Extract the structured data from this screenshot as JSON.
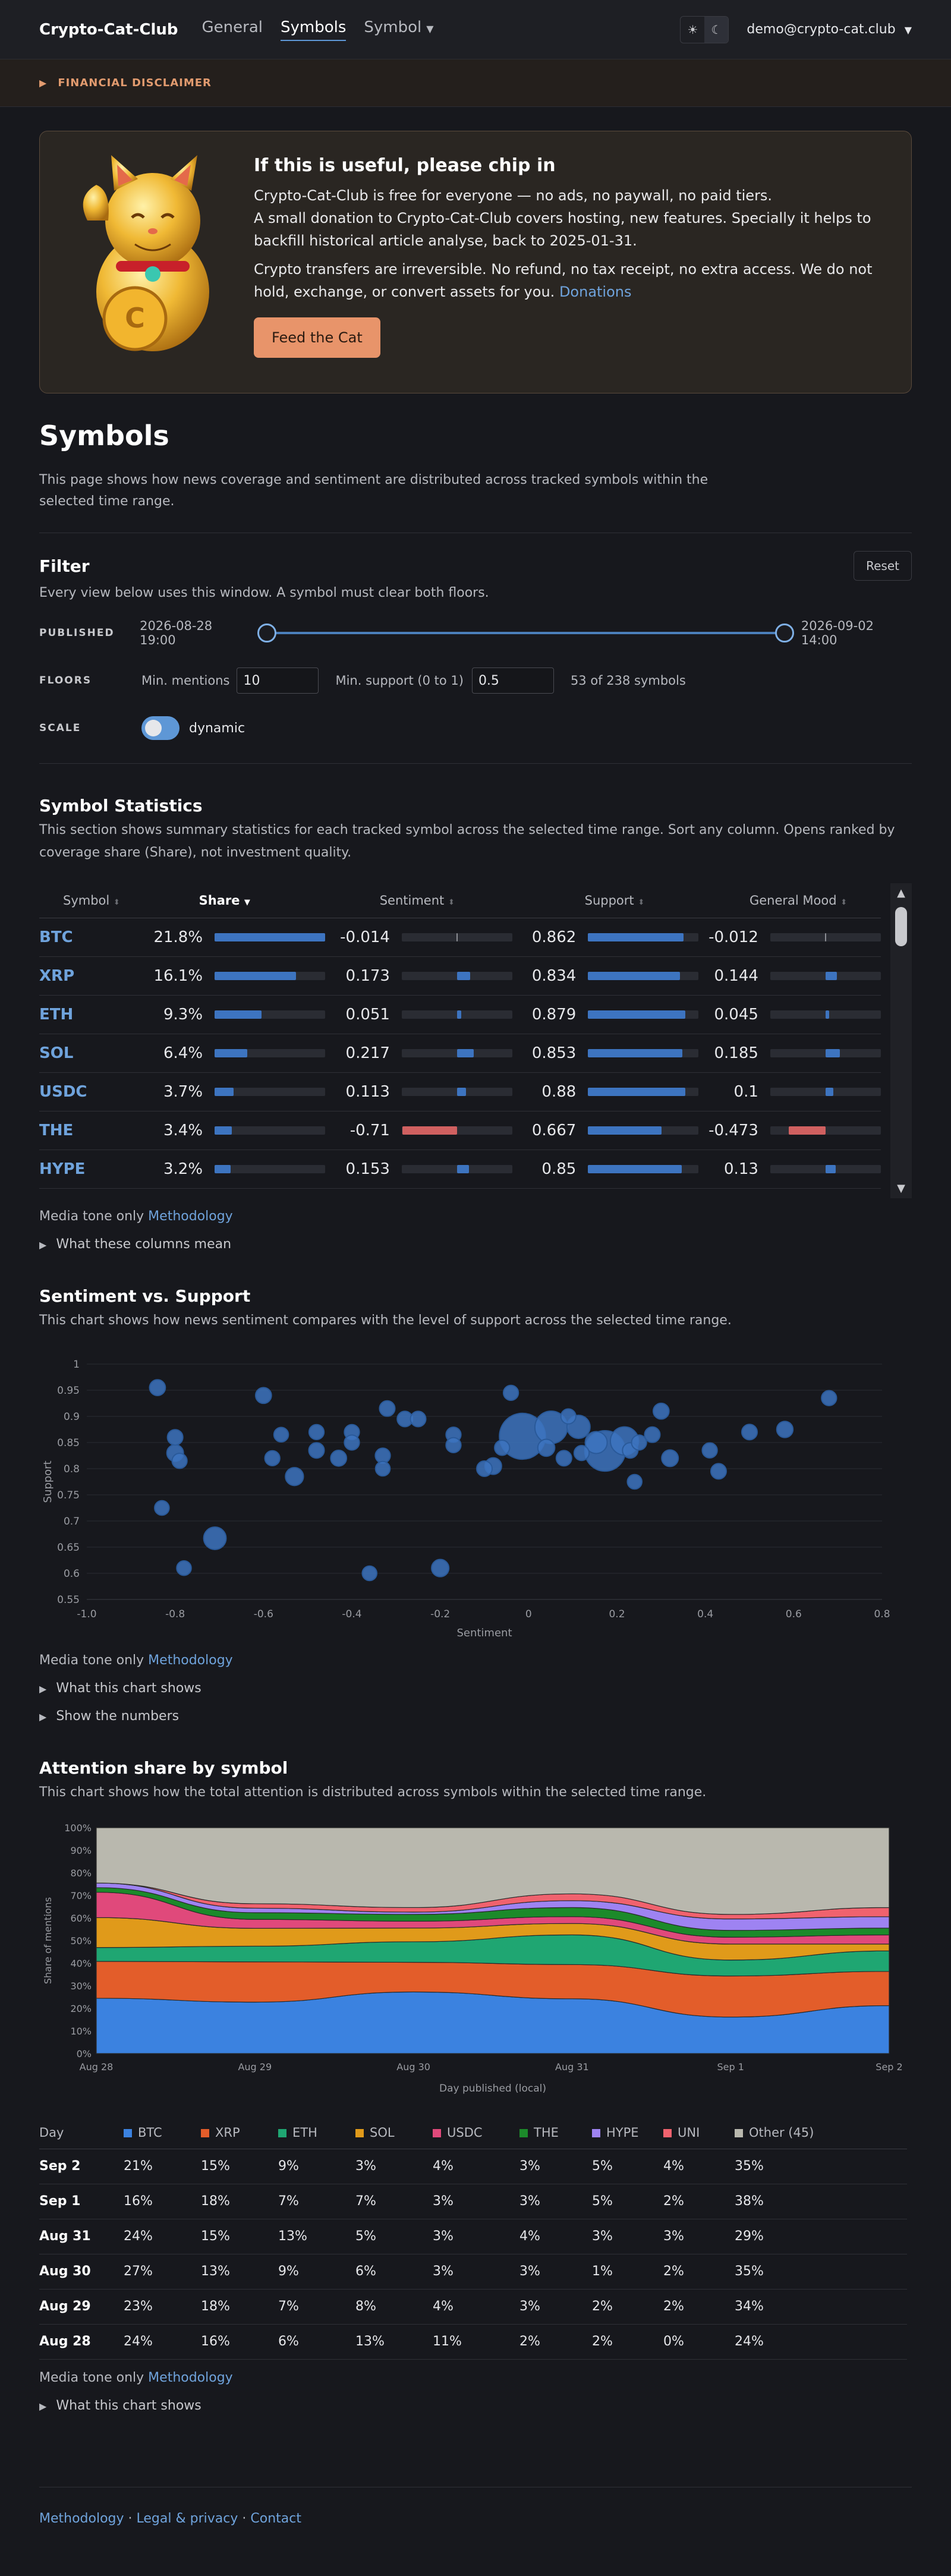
{
  "nav": {
    "brand": "Crypto-Cat-Club",
    "links": [
      {
        "label": "General"
      },
      {
        "label": "Symbols"
      },
      {
        "label": "Symbol"
      }
    ],
    "theme_light_icon": "☀",
    "theme_dark_icon": "☾",
    "user": "demo@crypto-cat.club"
  },
  "disclaimer": {
    "label": "FINANCIAL DISCLAIMER"
  },
  "donate": {
    "title": "If this is useful, please chip in",
    "p1": "Crypto-Cat-Club is free for everyone — no ads, no paywall, no paid tiers.",
    "p2": "A small donation to Crypto-Cat-Club covers hosting, new features. Specially it helps to backfill historical article analyse, back to 2025-01-31.",
    "p3": "Crypto transfers are irreversible. No refund, no tax receipt, no extra access. We do not hold, exchange, or convert assets for you.",
    "p3_link": "Donations",
    "button": "Feed the Cat"
  },
  "page": {
    "title": "Symbols",
    "intro": "This page shows how news coverage and sentiment are distributed across tracked symbols within the selected time range."
  },
  "filter": {
    "title": "Filter",
    "reset": "Reset",
    "subtitle": "Every view below uses this window. A symbol must clear both floors.",
    "published_label": "PUBLISHED",
    "published_start": "2026-08-28 19:00",
    "published_end": "2026-09-02 14:00",
    "floors_label": "FLOORS",
    "min_mentions_label": "Min. mentions",
    "min_mentions": "10",
    "min_support_label": "Min. support (0 to 1)",
    "min_support": "0.5",
    "count_text": "53 of 238 symbols",
    "scale_label": "SCALE",
    "scale_value": "dynamic",
    "scale_on": true
  },
  "stats": {
    "title": "Symbol Statistics",
    "subtitle": "This section shows summary statistics for each tracked symbol across the selected time range. Sort any column. Opens ranked by coverage share (Share), not investment quality.",
    "headers": [
      "Symbol",
      "Share",
      "Sentiment",
      "Support",
      "General Mood"
    ],
    "rows": [
      {
        "symbol": "BTC",
        "share": "21.8%",
        "share_v": 0.218,
        "sentiment": "-0.014",
        "sent_v": -0.014,
        "support": "0.862",
        "sup_v": 0.862,
        "mood": "-0.012",
        "mood_v": -0.012
      },
      {
        "symbol": "XRP",
        "share": "16.1%",
        "share_v": 0.161,
        "sentiment": "0.173",
        "sent_v": 0.173,
        "support": "0.834",
        "sup_v": 0.834,
        "mood": "0.144",
        "mood_v": 0.144
      },
      {
        "symbol": "ETH",
        "share": "9.3%",
        "share_v": 0.093,
        "sentiment": "0.051",
        "sent_v": 0.051,
        "support": "0.879",
        "sup_v": 0.879,
        "mood": "0.045",
        "mood_v": 0.045
      },
      {
        "symbol": "SOL",
        "share": "6.4%",
        "share_v": 0.064,
        "sentiment": "0.217",
        "sent_v": 0.217,
        "support": "0.853",
        "sup_v": 0.853,
        "mood": "0.185",
        "mood_v": 0.185
      },
      {
        "symbol": "USDC",
        "share": "3.7%",
        "share_v": 0.037,
        "sentiment": "0.113",
        "sent_v": 0.113,
        "support": "0.88",
        "sup_v": 0.88,
        "mood": "0.1",
        "mood_v": 0.1
      },
      {
        "symbol": "THE",
        "share": "3.4%",
        "share_v": 0.034,
        "sentiment": "-0.71",
        "sent_v": -0.71,
        "support": "0.667",
        "sup_v": 0.667,
        "mood": "-0.473",
        "mood_v": -0.473
      },
      {
        "symbol": "HYPE",
        "share": "3.2%",
        "share_v": 0.032,
        "sentiment": "0.153",
        "sent_v": 0.153,
        "support": "0.85",
        "sup_v": 0.85,
        "mood": "0.13",
        "mood_v": 0.13
      }
    ],
    "note": "Media tone only",
    "note_link": "Methodology",
    "details": "What these columns mean"
  },
  "scatter": {
    "title": "Sentiment vs. Support",
    "subtitle": "This chart shows how news sentiment compares with the level of support across the selected time range.",
    "note": "Media tone only",
    "note_link": "Methodology",
    "details1": "What this chart shows",
    "details2": "Show the numbers"
  },
  "area": {
    "title": "Attention share by symbol",
    "subtitle": "This chart shows how the total attention is distributed across symbols within the selected time range.",
    "note": "Media tone only",
    "note_link": "Methodology",
    "details": "What this chart shows",
    "table_headers": [
      "Day",
      "BTC",
      "XRP",
      "ETH",
      "SOL",
      "USDC",
      "THE",
      "HYPE",
      "UNI",
      "Other (45)"
    ],
    "table_rows": [
      [
        "Sep 2",
        "21%",
        "15%",
        "9%",
        "3%",
        "4%",
        "3%",
        "5%",
        "4%",
        "35%"
      ],
      [
        "Sep 1",
        "16%",
        "18%",
        "7%",
        "7%",
        "3%",
        "3%",
        "5%",
        "2%",
        "38%"
      ],
      [
        "Aug 31",
        "24%",
        "15%",
        "13%",
        "5%",
        "3%",
        "4%",
        "3%",
        "3%",
        "29%"
      ],
      [
        "Aug 30",
        "27%",
        "13%",
        "9%",
        "6%",
        "3%",
        "3%",
        "1%",
        "2%",
        "35%"
      ],
      [
        "Aug 29",
        "23%",
        "18%",
        "7%",
        "8%",
        "4%",
        "3%",
        "2%",
        "2%",
        "34%"
      ],
      [
        "Aug 28",
        "24%",
        "16%",
        "6%",
        "13%",
        "11%",
        "2%",
        "2%",
        "0%",
        "24%"
      ]
    ]
  },
  "chart_data": [
    {
      "type": "scatter",
      "title": "",
      "xlabel": "Sentiment",
      "ylabel": "Support",
      "xlim": [
        -1.0,
        0.8
      ],
      "ylim": [
        0.55,
        1
      ],
      "xticks": [
        "-1.0",
        "-0.8",
        "-0.6",
        "-0.4",
        "-0.2",
        "0",
        "0.2",
        "0.4",
        "0.6",
        "0.8"
      ],
      "yticks": [
        "0.55",
        "0.6",
        "0.65",
        "0.7",
        "0.75",
        "0.8",
        "0.85",
        "0.9",
        "0.95",
        "1"
      ],
      "grid": true,
      "color": "#3d74c0",
      "points": [
        {
          "x": -0.014,
          "y": 0.862,
          "share": 21.8
        },
        {
          "x": 0.173,
          "y": 0.834,
          "share": 16.1
        },
        {
          "x": 0.051,
          "y": 0.879,
          "share": 9.3
        },
        {
          "x": 0.217,
          "y": 0.853,
          "share": 6.4
        },
        {
          "x": 0.113,
          "y": 0.88,
          "share": 3.7
        },
        {
          "x": -0.71,
          "y": 0.667,
          "share": 3.4
        },
        {
          "x": 0.153,
          "y": 0.85,
          "share": 3.2
        },
        {
          "x": -0.84,
          "y": 0.955,
          "share": 1.1
        },
        {
          "x": -0.8,
          "y": 0.86,
          "share": 1.0
        },
        {
          "x": -0.8,
          "y": 0.83,
          "share": 1.3
        },
        {
          "x": -0.79,
          "y": 0.815,
          "share": 0.9
        },
        {
          "x": -0.83,
          "y": 0.725,
          "share": 0.8
        },
        {
          "x": -0.78,
          "y": 0.61,
          "share": 0.8
        },
        {
          "x": -0.6,
          "y": 0.94,
          "share": 1.1
        },
        {
          "x": -0.58,
          "y": 0.82,
          "share": 0.9
        },
        {
          "x": -0.56,
          "y": 0.865,
          "share": 0.8
        },
        {
          "x": -0.53,
          "y": 0.785,
          "share": 1.7
        },
        {
          "x": -0.48,
          "y": 0.87,
          "share": 0.9
        },
        {
          "x": -0.48,
          "y": 0.835,
          "share": 1.0
        },
        {
          "x": -0.43,
          "y": 0.82,
          "share": 1.1
        },
        {
          "x": -0.4,
          "y": 0.87,
          "share": 0.9
        },
        {
          "x": -0.4,
          "y": 0.85,
          "share": 0.9
        },
        {
          "x": -0.36,
          "y": 0.6,
          "share": 0.8
        },
        {
          "x": -0.33,
          "y": 0.825,
          "share": 0.9
        },
        {
          "x": -0.33,
          "y": 0.8,
          "share": 0.8
        },
        {
          "x": -0.32,
          "y": 0.915,
          "share": 1.0
        },
        {
          "x": -0.28,
          "y": 0.895,
          "share": 1.0
        },
        {
          "x": -0.25,
          "y": 0.895,
          "share": 1.0
        },
        {
          "x": -0.2,
          "y": 0.61,
          "share": 1.5
        },
        {
          "x": -0.17,
          "y": 0.865,
          "share": 0.9
        },
        {
          "x": -0.17,
          "y": 0.845,
          "share": 0.9
        },
        {
          "x": -0.1,
          "y": 0.8,
          "share": 1.0
        },
        {
          "x": -0.08,
          "y": 0.805,
          "share": 1.3
        },
        {
          "x": -0.06,
          "y": 0.84,
          "share": 0.9
        },
        {
          "x": -0.04,
          "y": 0.945,
          "share": 0.9
        },
        {
          "x": 0.04,
          "y": 0.84,
          "share": 1.4
        },
        {
          "x": 0.08,
          "y": 0.82,
          "share": 1.0
        },
        {
          "x": 0.09,
          "y": 0.9,
          "share": 0.9
        },
        {
          "x": 0.12,
          "y": 0.83,
          "share": 0.9
        },
        {
          "x": 0.23,
          "y": 0.835,
          "share": 1.0
        },
        {
          "x": 0.24,
          "y": 0.775,
          "share": 0.8
        },
        {
          "x": 0.25,
          "y": 0.85,
          "share": 0.9
        },
        {
          "x": 0.28,
          "y": 0.865,
          "share": 1.0
        },
        {
          "x": 0.3,
          "y": 0.91,
          "share": 1.1
        },
        {
          "x": 0.32,
          "y": 0.82,
          "share": 1.3
        },
        {
          "x": 0.41,
          "y": 0.835,
          "share": 0.9
        },
        {
          "x": 0.43,
          "y": 0.795,
          "share": 1.0
        },
        {
          "x": 0.5,
          "y": 0.87,
          "share": 1.0
        },
        {
          "x": 0.58,
          "y": 0.875,
          "share": 1.2
        },
        {
          "x": 0.68,
          "y": 0.935,
          "share": 0.9
        }
      ]
    },
    {
      "type": "area",
      "title": "",
      "xlabel": "Day published (local)",
      "ylabel": "Share of mentions",
      "categories": [
        "Aug 28",
        "Aug 29",
        "Aug 30",
        "Aug 31",
        "Sep 1",
        "Sep 2"
      ],
      "ylim": [
        0,
        100
      ],
      "yticks": [
        "0%",
        "10%",
        "20%",
        "30%",
        "40%",
        "50%",
        "60%",
        "70%",
        "80%",
        "90%",
        "100%"
      ],
      "stacked": true,
      "series": [
        {
          "name": "BTC",
          "color": "#3b82e0",
          "values": [
            24,
            23,
            27,
            24,
            16,
            21
          ]
        },
        {
          "name": "XRP",
          "color": "#e35d2a",
          "values": [
            16,
            18,
            13,
            15,
            18,
            15
          ]
        },
        {
          "name": "ETH",
          "color": "#1fa672",
          "values": [
            6,
            7,
            9,
            13,
            7,
            9
          ]
        },
        {
          "name": "SOL",
          "color": "#e09a1a",
          "values": [
            13,
            8,
            6,
            5,
            7,
            3
          ]
        },
        {
          "name": "USDC",
          "color": "#e0497b",
          "values": [
            11,
            4,
            3,
            3,
            3,
            4
          ]
        },
        {
          "name": "THE",
          "color": "#1c8a2a",
          "values": [
            2,
            3,
            3,
            4,
            3,
            3
          ]
        },
        {
          "name": "HYPE",
          "color": "#9e83f2",
          "values": [
            2,
            2,
            1,
            3,
            5,
            5
          ]
        },
        {
          "name": "UNI",
          "color": "#f0626e",
          "values": [
            0,
            2,
            2,
            3,
            2,
            4
          ]
        },
        {
          "name": "Other (45)",
          "color": "#b9b8ae",
          "values": [
            24,
            34,
            35,
            29,
            38,
            35
          ]
        }
      ]
    }
  ],
  "footer": {
    "methodology": "Methodology",
    "legal": "Legal & privacy",
    "contact": "Contact",
    "sep": "·"
  }
}
